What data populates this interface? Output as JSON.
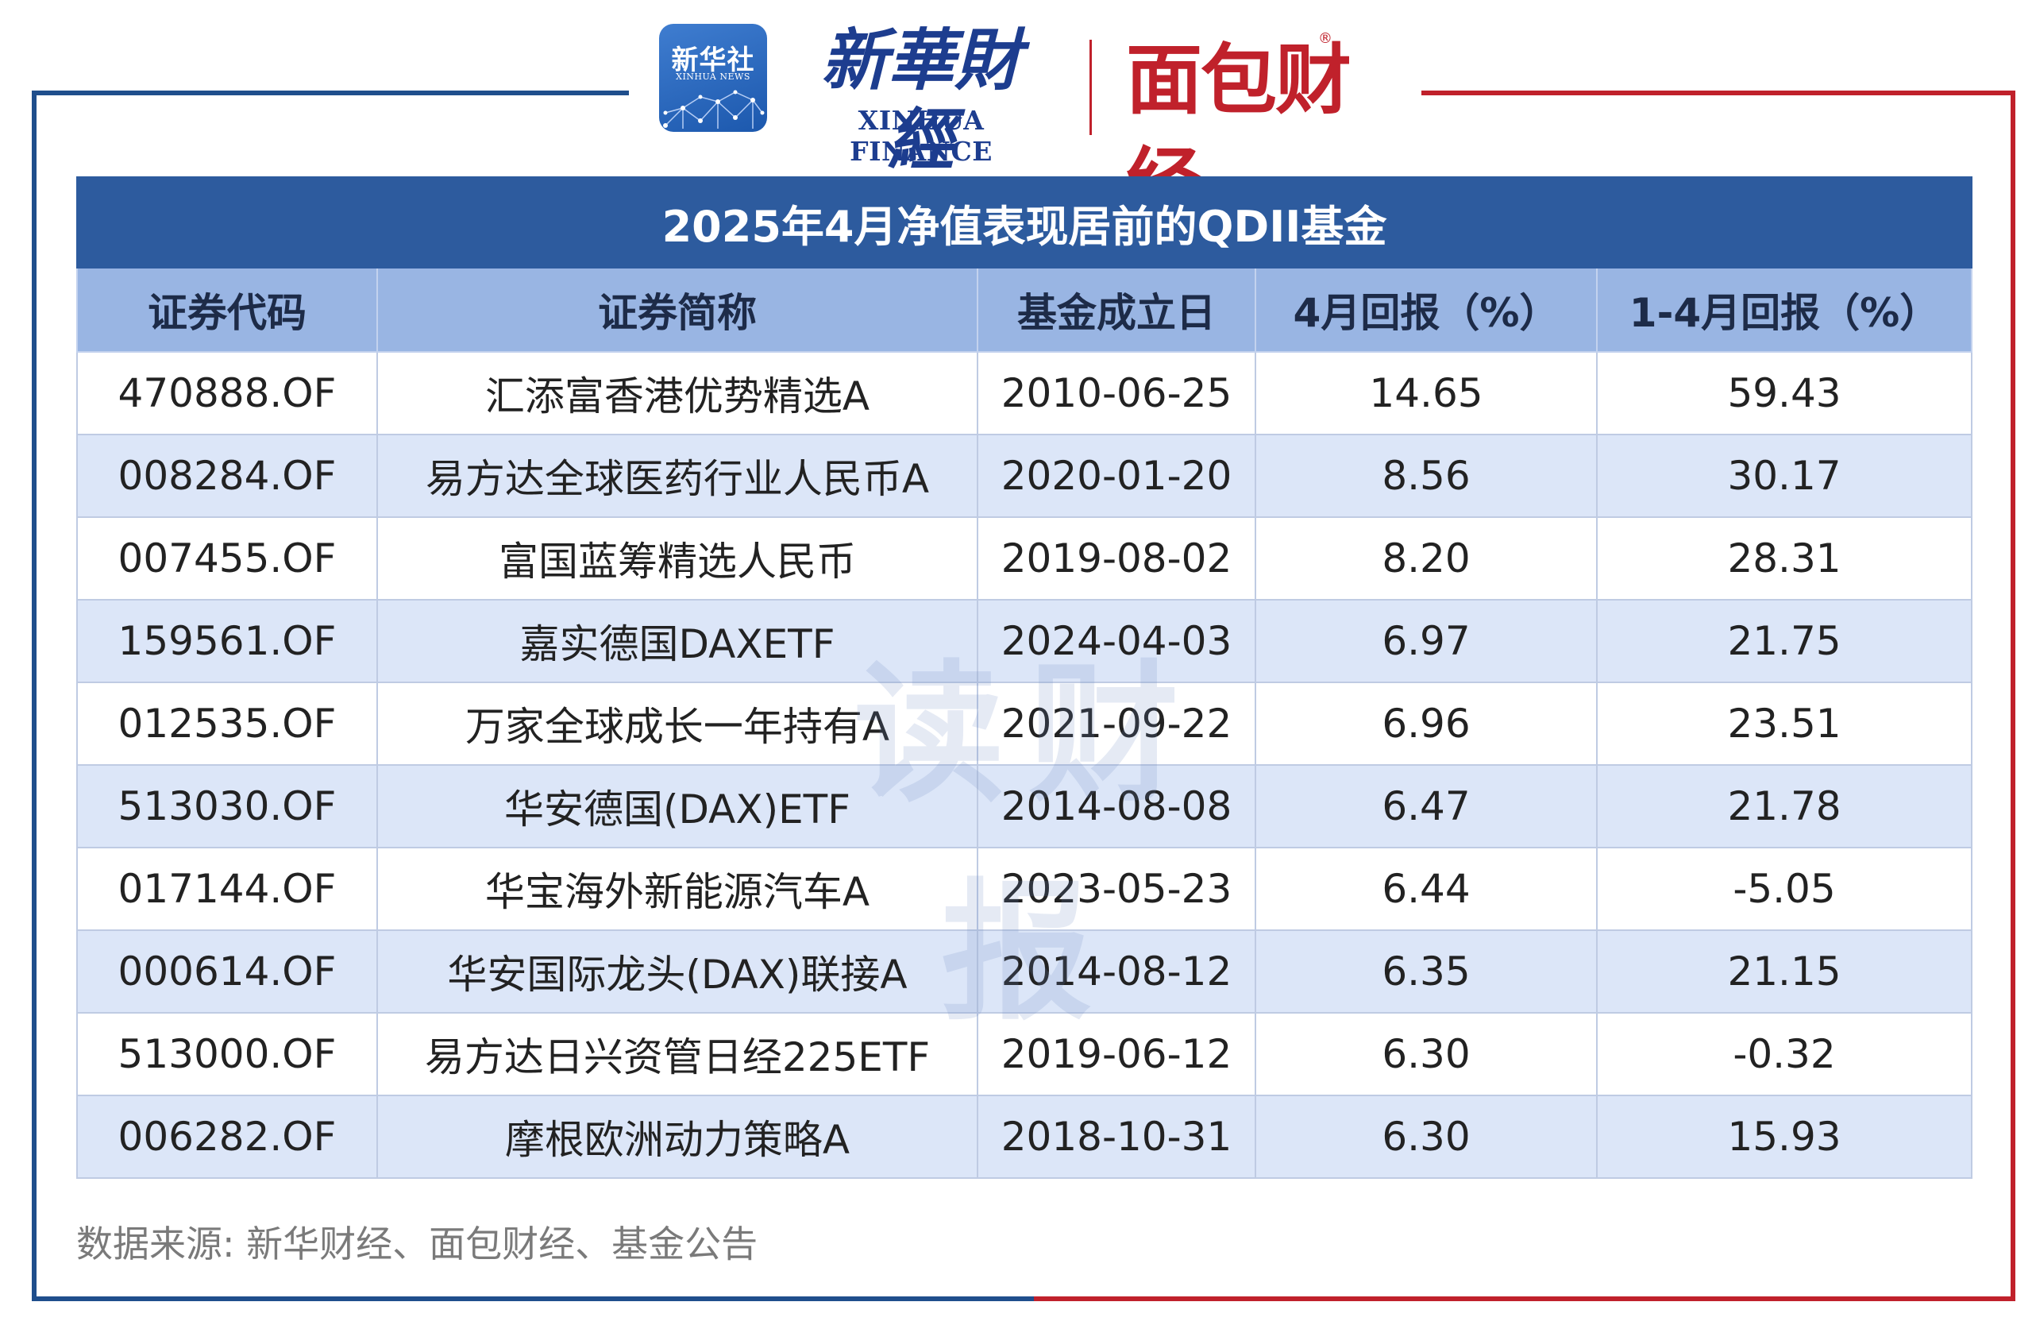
{
  "logos": {
    "xinhua_badge_cn": "新华社",
    "xinhua_badge_en": "XINHUA NEWS",
    "xinhua_finance_cn": "新華財經",
    "xinhua_finance_en": "XINHUA FINANCE",
    "mianbao_finance": "面包财经",
    "registered_mark": "®"
  },
  "table": {
    "title": "2025年4月净值表现居前的QDII基金",
    "columns": [
      "证券代码",
      "证券简称",
      "基金成立日",
      "4月回报（%）",
      "1-4月回报（%）"
    ],
    "rows": [
      {
        "code": "470888.OF",
        "name": "汇添富香港优势精选A",
        "inception": "2010-06-25",
        "april_return": "14.65",
        "ytd_return": "59.43"
      },
      {
        "code": "008284.OF",
        "name": "易方达全球医药行业人民币A",
        "inception": "2020-01-20",
        "april_return": "8.56",
        "ytd_return": "30.17"
      },
      {
        "code": "007455.OF",
        "name": "富国蓝筹精选人民币",
        "inception": "2019-08-02",
        "april_return": "8.20",
        "ytd_return": "28.31"
      },
      {
        "code": "159561.OF",
        "name": "嘉实德国DAXETF",
        "inception": "2024-04-03",
        "april_return": "6.97",
        "ytd_return": "21.75"
      },
      {
        "code": "012535.OF",
        "name": "万家全球成长一年持有A",
        "inception": "2021-09-22",
        "april_return": "6.96",
        "ytd_return": "23.51"
      },
      {
        "code": "513030.OF",
        "name": "华安德国(DAX)ETF",
        "inception": "2014-08-08",
        "april_return": "6.47",
        "ytd_return": "21.78"
      },
      {
        "code": "017144.OF",
        "name": "华宝海外新能源汽车A",
        "inception": "2023-05-23",
        "april_return": "6.44",
        "ytd_return": "-5.05"
      },
      {
        "code": "000614.OF",
        "name": "华安国际龙头(DAX)联接A",
        "inception": "2014-08-12",
        "april_return": "6.35",
        "ytd_return": "21.15"
      },
      {
        "code": "513000.OF",
        "name": "易方达日兴资管日经225ETF",
        "inception": "2019-06-12",
        "april_return": "6.30",
        "ytd_return": "-0.32"
      },
      {
        "code": "006282.OF",
        "name": "摩根欧洲动力策略A",
        "inception": "2018-10-31",
        "april_return": "6.30",
        "ytd_return": "15.93"
      }
    ]
  },
  "watermark": "读财报",
  "source_note": "数据来源: 新华财经、面包财经、基金公告",
  "colors": {
    "title_bar": "#2d5b9e",
    "header_row": "#99b5e3",
    "row_alt": "#dce6f8",
    "frame_blue": "#1f4e8c",
    "frame_red": "#c0212b"
  }
}
